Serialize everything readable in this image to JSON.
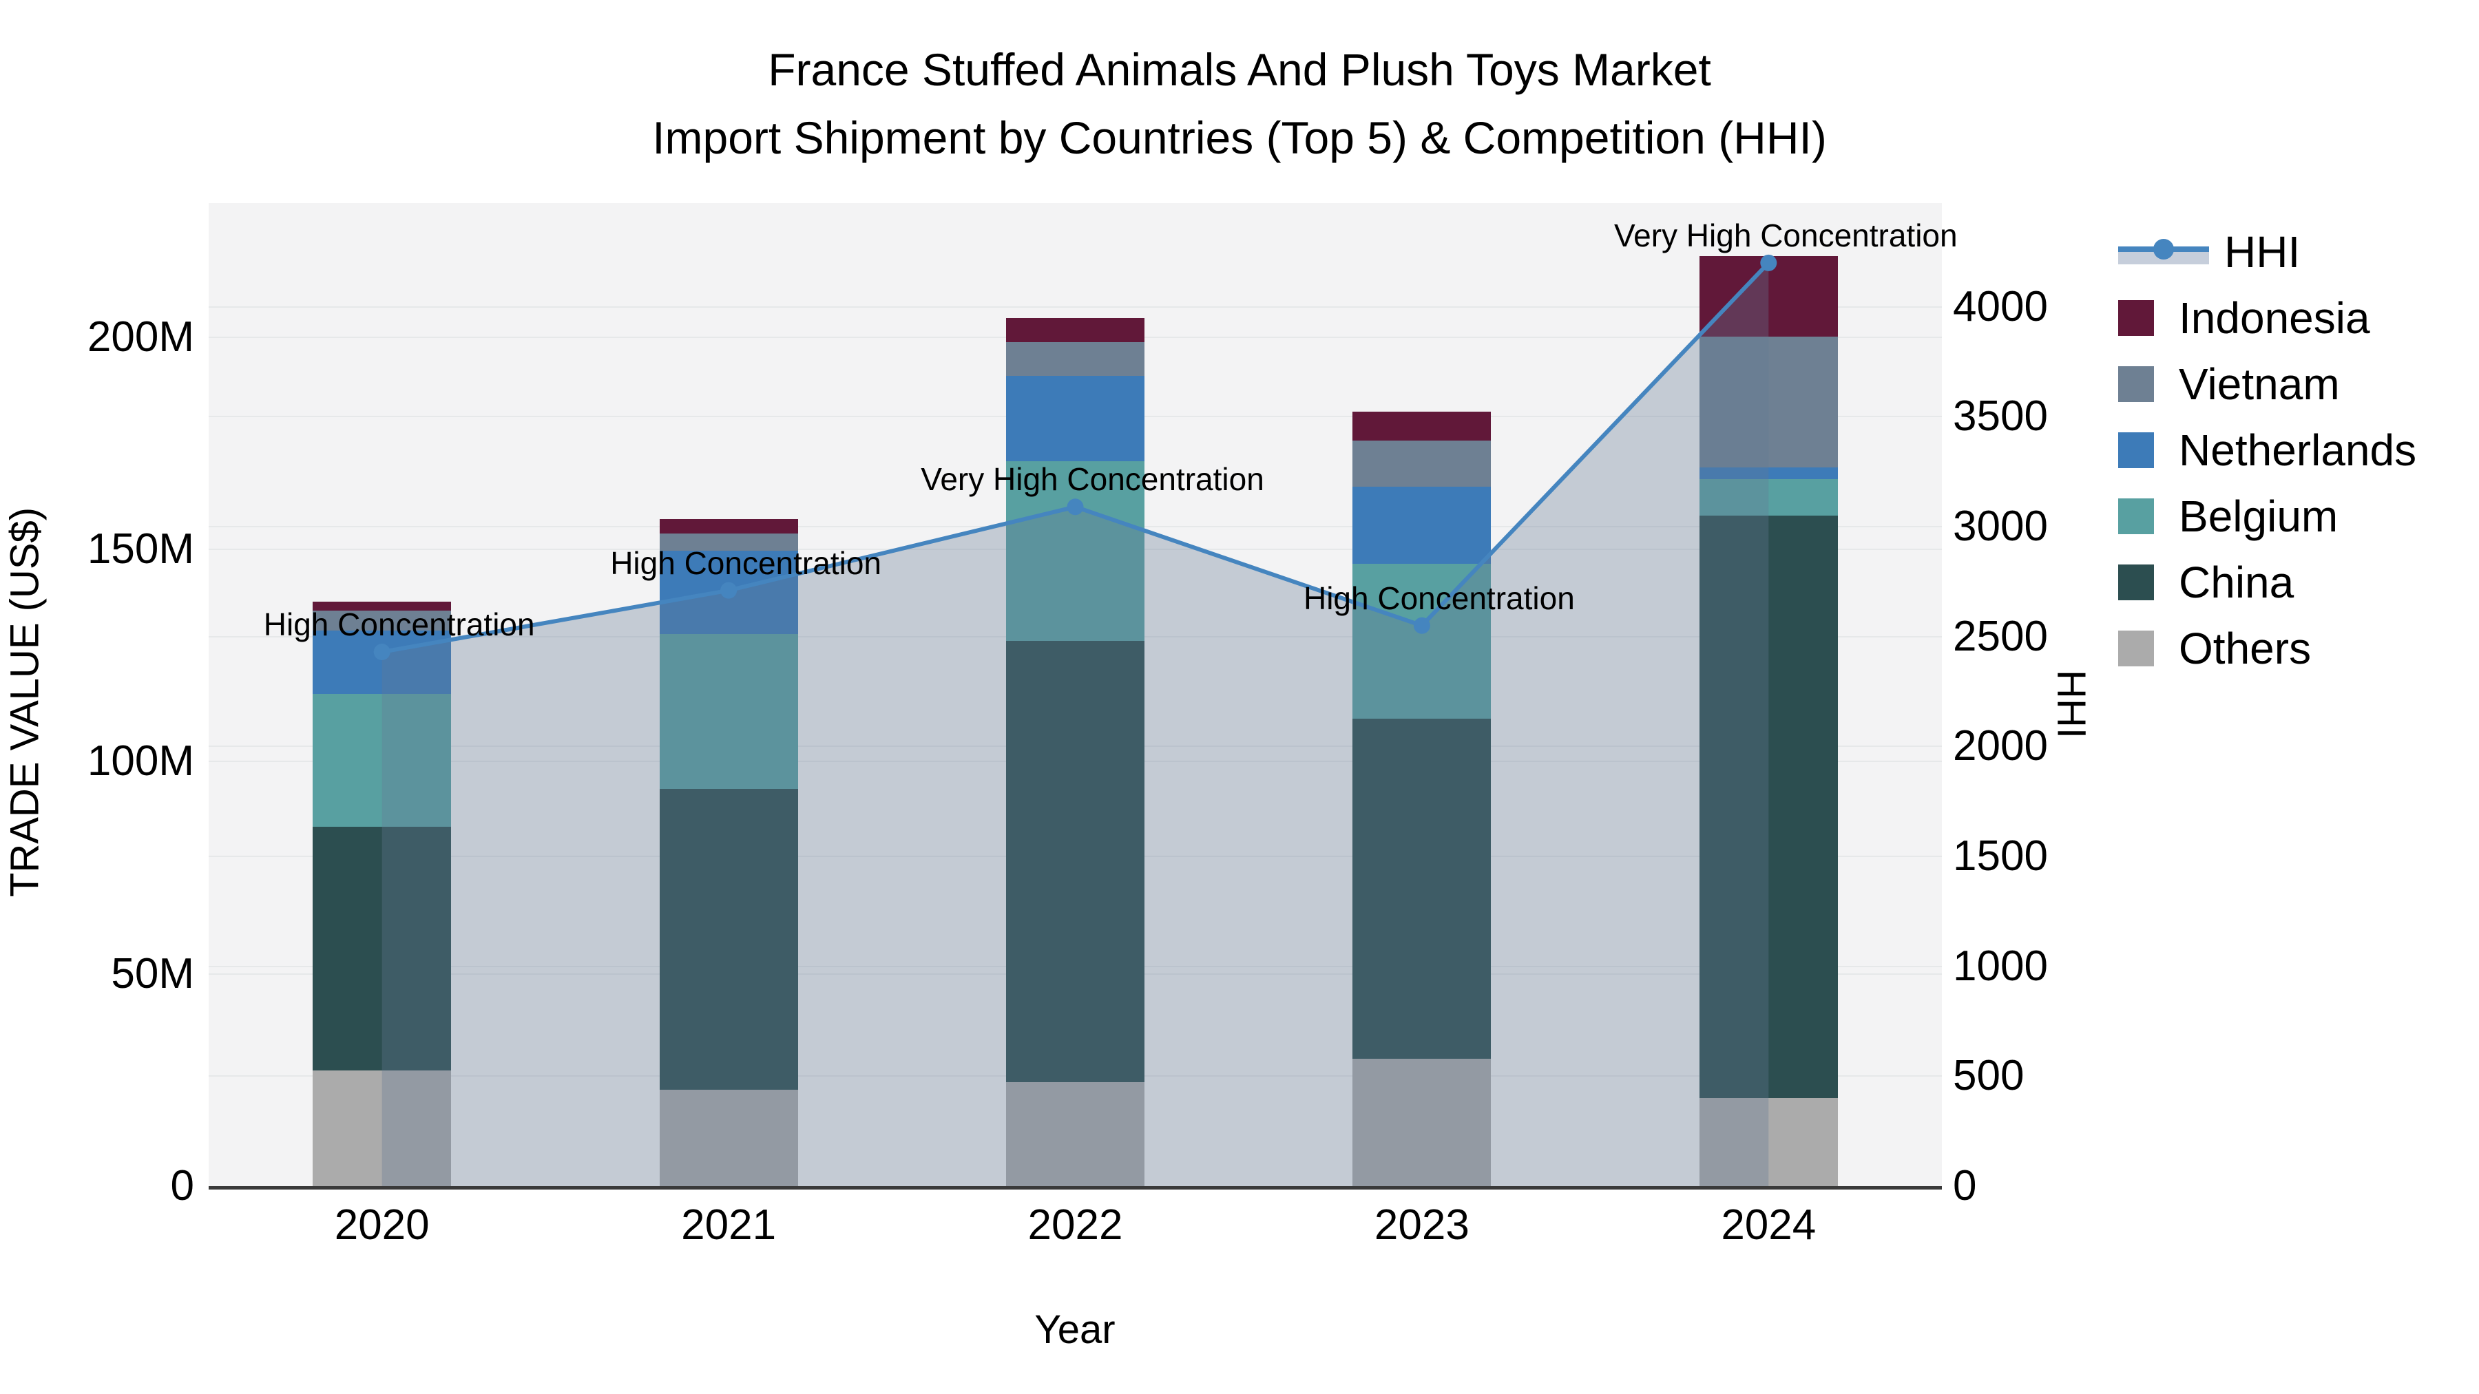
{
  "title": {
    "line1": "France Stuffed Animals And Plush Toys Market",
    "line2": "Import Shipment by Countries (Top 5) & Competition (HHI)"
  },
  "chart_data": {
    "type": "stacked-bar+line",
    "categories": [
      "2020",
      "2021",
      "2022",
      "2023",
      "2024"
    ],
    "series": [
      {
        "name": "Others",
        "color": "#ABABAB",
        "values": [
          27.3,
          22.7,
          24.5,
          30.0,
          20.8
        ]
      },
      {
        "name": "China",
        "color": "#2C4E50",
        "values": [
          57.4,
          70.9,
          104.0,
          80.1,
          137.1
        ]
      },
      {
        "name": "Belgium",
        "color": "#58A0A1",
        "values": [
          31.3,
          36.5,
          42.3,
          36.5,
          8.6
        ]
      },
      {
        "name": "Netherlands",
        "color": "#3D7BB8",
        "values": [
          14.9,
          19.6,
          20.1,
          18.2,
          2.8
        ]
      },
      {
        "name": "Vietnam",
        "color": "#6E8093",
        "values": [
          4.7,
          4.1,
          7.9,
          10.9,
          30.8
        ]
      },
      {
        "name": "Indonesia",
        "color": "#611839",
        "values": [
          2.1,
          3.4,
          5.7,
          6.8,
          19.0
        ]
      }
    ],
    "line": {
      "name": "HHI",
      "color": "#4585BF",
      "area_color": "rgba(100,122,148,0.33)",
      "values": [
        2430,
        2710,
        3090,
        2550,
        4200
      ]
    },
    "annotations": [
      {
        "year": "2020",
        "text": "High Concentration"
      },
      {
        "year": "2021",
        "text": "High Concentration"
      },
      {
        "year": "2022",
        "text": "Very High Concentration"
      },
      {
        "year": "2023",
        "text": "High Concentration"
      },
      {
        "year": "2024",
        "text": "Very High Concentration"
      }
    ],
    "xlabel": "Year",
    "ylabel_left": "TRADE VALUE (US$)",
    "ylabel_right": "HHI",
    "yticks_left": [
      {
        "v": 0,
        "label": "0"
      },
      {
        "v": 50,
        "label": "50M"
      },
      {
        "v": 100,
        "label": "100M"
      },
      {
        "v": 150,
        "label": "150M"
      },
      {
        "v": 200,
        "label": "200M"
      }
    ],
    "yticks_right": [
      0,
      500,
      1000,
      1500,
      2000,
      2500,
      3000,
      3500,
      4000
    ],
    "ylim_left": [
      0,
      231.6
    ],
    "ylim_right": [
      0,
      4472
    ],
    "grid": true,
    "legend_position": "right",
    "legend_order": [
      "HHI",
      "Indonesia",
      "Vietnam",
      "Netherlands",
      "Belgium",
      "China",
      "Others"
    ]
  }
}
